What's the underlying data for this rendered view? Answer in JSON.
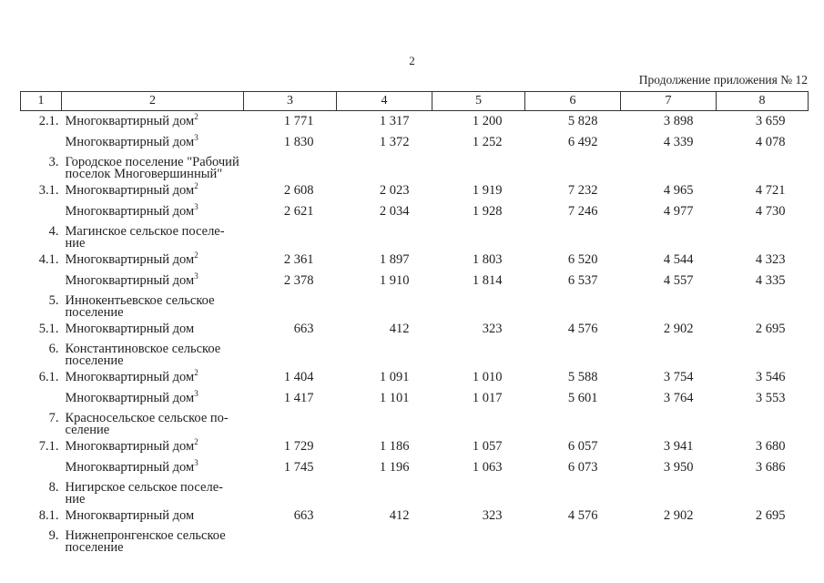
{
  "page": {
    "number": "2",
    "caption": "Продолжение приложения № 12"
  },
  "table": {
    "header": [
      "1",
      "2",
      "3",
      "4",
      "5",
      "6",
      "7",
      "8"
    ],
    "rows": [
      {
        "type": "item",
        "num": "2.1.",
        "label": "Многоквартирный дом",
        "sup": "2",
        "values": [
          "1 771",
          "1 317",
          "1 200",
          "5 828",
          "3 898",
          "3 659"
        ]
      },
      {
        "type": "item",
        "num": "",
        "label": "Многоквартирный дом",
        "sup": "3",
        "values": [
          "1 830",
          "1 372",
          "1 252",
          "6 492",
          "4 339",
          "4 078"
        ]
      },
      {
        "type": "group",
        "num": "3.",
        "label": "Городское поселение \"Рабочий\nпоселок Многовершинный\"",
        "sup": "",
        "values": []
      },
      {
        "type": "item",
        "num": "3.1.",
        "label": "Многоквартирный дом",
        "sup": "2",
        "values": [
          "2 608",
          "2 023",
          "1 919",
          "7 232",
          "4 965",
          "4 721"
        ]
      },
      {
        "type": "item",
        "num": "",
        "label": "Многоквартирный дом",
        "sup": "3",
        "values": [
          "2 621",
          "2 034",
          "1 928",
          "7 246",
          "4 977",
          "4 730"
        ]
      },
      {
        "type": "group",
        "num": "4.",
        "label": "Магинское сельское поселе-\nние",
        "sup": "",
        "values": []
      },
      {
        "type": "item",
        "num": "4.1.",
        "label": "Многоквартирный дом",
        "sup": "2",
        "values": [
          "2 361",
          "1 897",
          "1 803",
          "6 520",
          "4 544",
          "4 323"
        ]
      },
      {
        "type": "item",
        "num": "",
        "label": "Многоквартирный дом",
        "sup": "3",
        "values": [
          "2 378",
          "1 910",
          "1 814",
          "6 537",
          "4 557",
          "4 335"
        ]
      },
      {
        "type": "group",
        "num": "5.",
        "label": "Иннокентьевское сельское\nпоселение",
        "sup": "",
        "values": []
      },
      {
        "type": "item",
        "num": "5.1.",
        "label": "Многоквартирный дом",
        "sup": "",
        "values": [
          "663",
          "412",
          "323",
          "4 576",
          "2 902",
          "2 695"
        ]
      },
      {
        "type": "group",
        "num": "6.",
        "label": "Константиновское сельское\nпоселение",
        "sup": "",
        "values": []
      },
      {
        "type": "item",
        "num": "6.1.",
        "label": "Многоквартирный дом",
        "sup": "2",
        "values": [
          "1 404",
          "1 091",
          "1 010",
          "5 588",
          "3 754",
          "3 546"
        ]
      },
      {
        "type": "item",
        "num": "",
        "label": "Многоквартирный дом",
        "sup": "3",
        "values": [
          "1 417",
          "1 101",
          "1 017",
          "5 601",
          "3 764",
          "3 553"
        ]
      },
      {
        "type": "group",
        "num": "7.",
        "label": "Красносельское сельское по-\nселение",
        "sup": "",
        "values": []
      },
      {
        "type": "item",
        "num": "7.1.",
        "label": "Многоквартирный дом",
        "sup": "2",
        "values": [
          "1 729",
          "1 186",
          "1 057",
          "6 057",
          "3 941",
          "3 680"
        ]
      },
      {
        "type": "item",
        "num": "",
        "label": "Многоквартирный дом",
        "sup": "3",
        "values": [
          "1 745",
          "1 196",
          "1 063",
          "6 073",
          "3 950",
          "3 686"
        ]
      },
      {
        "type": "group",
        "num": "8.",
        "label": "Нигирское сельское поселе-\nние",
        "sup": "",
        "values": []
      },
      {
        "type": "item",
        "num": "8.1.",
        "label": "Многоквартирный дом",
        "sup": "",
        "values": [
          "663",
          "412",
          "323",
          "4 576",
          "2 902",
          "2 695"
        ]
      },
      {
        "type": "group",
        "num": "9.",
        "label": "Нижнепронгенское сельское\nпоселение",
        "sup": "",
        "values": []
      }
    ]
  }
}
